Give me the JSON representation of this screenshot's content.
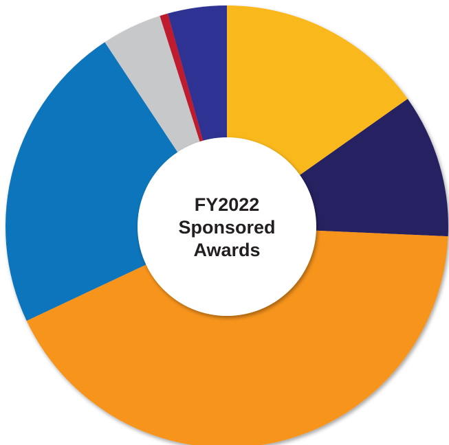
{
  "chart_data": {
    "type": "donut",
    "title": [
      "FY2022",
      "Sponsored",
      "Awards"
    ],
    "categories": [
      null,
      null,
      null,
      null,
      null,
      null,
      null
    ],
    "values": [
      15.2,
      10.5,
      42.3,
      22.7,
      4.4,
      0.6,
      4.3
    ],
    "colors": [
      "#f9b81e",
      "#262262",
      "#f7941d",
      "#1174bb",
      "#c7c8ca",
      "#be1e2d",
      "#2e3192"
    ]
  }
}
